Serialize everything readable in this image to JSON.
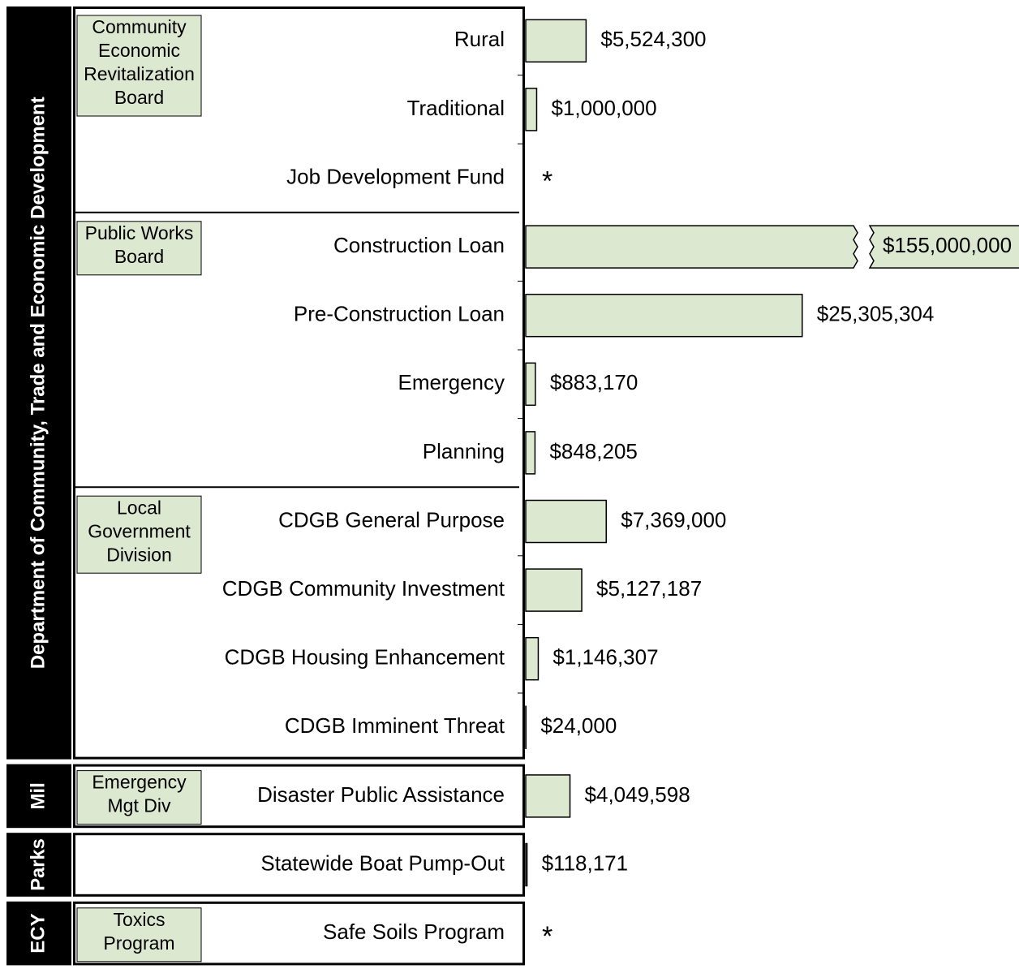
{
  "chart_data": {
    "type": "bar",
    "color": "#dde8d0",
    "xlim": [
      0,
      30000000
    ],
    "groups": [
      {
        "label": "Department of Community, Trade and Economic Development",
        "subgroups": [
          {
            "label": [
              "Community",
              "Economic",
              "Revitalization",
              "Board"
            ],
            "categories": [
              "Rural",
              "Traditional",
              "Job Development Fund"
            ],
            "values": [
              5524300,
              1000000,
              null
            ],
            "value_labels": [
              "$5,524,300",
              "$1,000,000",
              "*"
            ]
          },
          {
            "label": [
              "Public Works",
              "Board"
            ],
            "categories": [
              "Construction Loan",
              "Pre-Construction Loan",
              "Emergency",
              "Planning"
            ],
            "values": [
              155000000,
              25305304,
              883170,
              848205
            ],
            "value_labels": [
              "$155,000,000",
              "$25,305,304",
              "$883,170",
              "$848,205"
            ]
          },
          {
            "label": [
              "Local",
              "Government",
              "Division"
            ],
            "categories": [
              "CDGB General Purpose",
              "CDGB Community Investment",
              "CDGB Housing Enhancement",
              "CDGB Imminent Threat"
            ],
            "values": [
              7369000,
              5127187,
              1146307,
              24000
            ],
            "value_labels": [
              "$7,369,000",
              "$5,127,187",
              "$1,146,307",
              "$24,000"
            ]
          }
        ]
      },
      {
        "label": "Mil",
        "subgroups": [
          {
            "label": [
              "Emergency",
              "Mgt Div"
            ],
            "categories": [
              "Disaster Public Assistance"
            ],
            "values": [
              4049598
            ],
            "value_labels": [
              "$4,049,598"
            ]
          }
        ]
      },
      {
        "label": "Parks",
        "subgroups": [
          {
            "categories": [
              "Statewide Boat Pump-Out"
            ],
            "values": [
              118171
            ],
            "value_labels": [
              "$118,171"
            ]
          }
        ]
      },
      {
        "label": "ECY",
        "subgroups": [
          {
            "label": [
              "Toxics",
              "Program"
            ],
            "categories": [
              "Safe Soils Program"
            ],
            "values": [
              null
            ],
            "value_labels": [
              "*"
            ]
          }
        ]
      }
    ]
  }
}
